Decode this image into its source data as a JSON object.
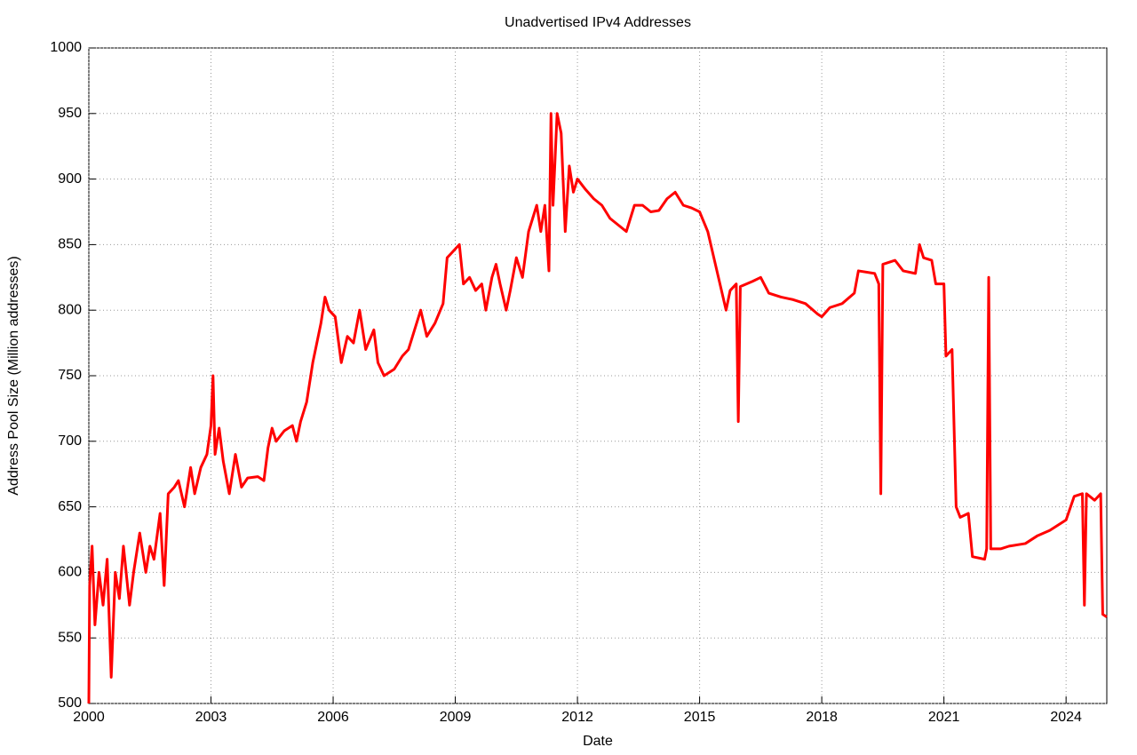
{
  "chart_data": {
    "type": "line",
    "title": "Unadvertised IPv4 Addresses",
    "x_label": "Date",
    "y_label": "Address Pool Size (Million addresses)",
    "xlim": [
      2000,
      2025
    ],
    "ylim": [
      500,
      1000
    ],
    "xticks": [
      2000,
      2003,
      2006,
      2009,
      2012,
      2015,
      2018,
      2021,
      2024
    ],
    "yticks": [
      500,
      550,
      600,
      650,
      700,
      750,
      800,
      850,
      900,
      950,
      1000
    ],
    "grid": true,
    "series": [
      {
        "color": "#ff0000",
        "x": [
          2000.0,
          2000.02,
          2000.08,
          2000.15,
          2000.25,
          2000.35,
          2000.45,
          2000.55,
          2000.65,
          2000.75,
          2000.85,
          2001.0,
          2001.1,
          2001.25,
          2001.4,
          2001.5,
          2001.6,
          2001.75,
          2001.85,
          2001.95,
          2002.1,
          2002.2,
          2002.35,
          2002.5,
          2002.6,
          2002.75,
          2002.9,
          2003.0,
          2003.05,
          2003.1,
          2003.2,
          2003.3,
          2003.45,
          2003.6,
          2003.75,
          2003.9,
          2004.15,
          2004.3,
          2004.4,
          2004.5,
          2004.6,
          2004.8,
          2005.0,
          2005.1,
          2005.2,
          2005.35,
          2005.5,
          2005.7,
          2005.8,
          2005.9,
          2006.05,
          2006.2,
          2006.35,
          2006.5,
          2006.65,
          2006.8,
          2007.0,
          2007.1,
          2007.25,
          2007.5,
          2007.7,
          2007.85,
          2008.0,
          2008.15,
          2008.3,
          2008.5,
          2008.7,
          2008.8,
          2008.95,
          2009.1,
          2009.2,
          2009.35,
          2009.5,
          2009.65,
          2009.75,
          2009.9,
          2010.0,
          2010.1,
          2010.25,
          2010.35,
          2010.5,
          2010.65,
          2010.8,
          2010.9,
          2011.0,
          2011.1,
          2011.2,
          2011.3,
          2011.35,
          2011.4,
          2011.5,
          2011.6,
          2011.7,
          2011.8,
          2011.9,
          2012.0,
          2012.2,
          2012.4,
          2012.6,
          2012.8,
          2013.0,
          2013.2,
          2013.4,
          2013.6,
          2013.8,
          2014.0,
          2014.2,
          2014.4,
          2014.6,
          2014.8,
          2015.0,
          2015.2,
          2015.35,
          2015.5,
          2015.65,
          2015.75,
          2015.9,
          2015.95,
          2016.0,
          2016.3,
          2016.5,
          2016.7,
          2017.0,
          2017.3,
          2017.6,
          2017.9,
          2018.0,
          2018.2,
          2018.5,
          2018.8,
          2018.9,
          2019.3,
          2019.4,
          2019.45,
          2019.5,
          2019.8,
          2020.0,
          2020.3,
          2020.4,
          2020.5,
          2020.7,
          2020.8,
          2021.0,
          2021.05,
          2021.2,
          2021.3,
          2021.4,
          2021.6,
          2021.7,
          2022.0,
          2022.05,
          2022.1,
          2022.15,
          2022.4,
          2022.6,
          2023.0,
          2023.3,
          2023.6,
          2024.0,
          2024.2,
          2024.4,
          2024.45,
          2024.5,
          2024.7,
          2024.85,
          2024.9,
          2025.0
        ],
        "values": [
          500,
          590,
          620,
          560,
          600,
          575,
          610,
          520,
          600,
          580,
          620,
          575,
          600,
          630,
          600,
          620,
          610,
          645,
          590,
          660,
          665,
          670,
          650,
          680,
          660,
          680,
          690,
          712,
          750,
          690,
          710,
          685,
          660,
          690,
          665,
          672,
          673,
          670,
          695,
          710,
          700,
          708,
          712,
          700,
          715,
          730,
          760,
          790,
          810,
          800,
          795,
          760,
          780,
          775,
          800,
          770,
          785,
          760,
          750,
          755,
          765,
          770,
          785,
          800,
          780,
          790,
          805,
          840,
          845,
          850,
          820,
          825,
          815,
          820,
          800,
          825,
          835,
          820,
          800,
          815,
          840,
          825,
          860,
          870,
          880,
          860,
          880,
          830,
          950,
          880,
          950,
          935,
          860,
          910,
          890,
          900,
          892,
          885,
          880,
          870,
          865,
          860,
          880,
          880,
          875,
          876,
          885,
          890,
          880,
          878,
          875,
          860,
          840,
          820,
          800,
          815,
          820,
          715,
          818,
          822,
          825,
          813,
          810,
          808,
          805,
          797,
          795,
          802,
          805,
          813,
          830,
          828,
          820,
          660,
          835,
          838,
          830,
          828,
          850,
          840,
          838,
          820,
          820,
          765,
          770,
          650,
          642,
          645,
          612,
          610,
          618,
          825,
          618,
          618,
          620,
          622,
          628,
          632,
          640,
          658,
          660,
          575,
          660,
          655,
          660,
          568,
          566
        ]
      }
    ]
  }
}
